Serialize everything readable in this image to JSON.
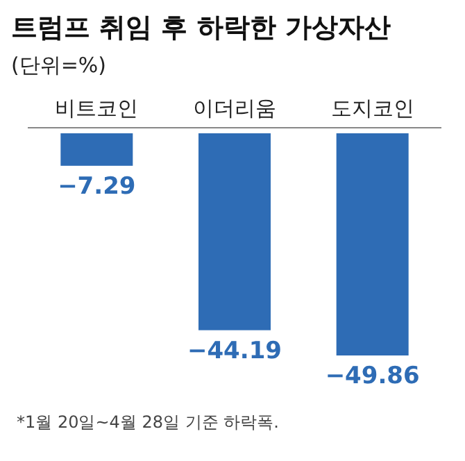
{
  "chart_data": {
    "type": "bar",
    "title": "트럼프 취임 후 하락한 가상자산",
    "subtitle": "(단위=%)",
    "categories": [
      "비트코인",
      "이더리움",
      "도지코인"
    ],
    "values": [
      -7.29,
      -44.19,
      -49.86
    ],
    "color": "#2e6cb5",
    "data_labels": true,
    "annotations": [
      "*1월 20일~4월 28일 기준 하락폭."
    ]
  }
}
